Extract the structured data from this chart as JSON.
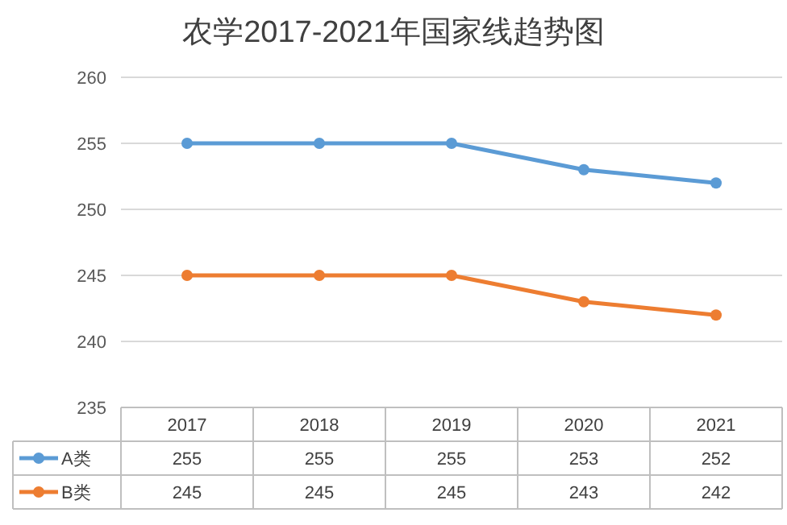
{
  "chart_data": {
    "type": "line",
    "title": "农学2017-2021年国家线趋势图",
    "categories": [
      "2017",
      "2018",
      "2019",
      "2020",
      "2021"
    ],
    "series": [
      {
        "name": "A类",
        "color": "#5b9bd5",
        "values": [
          255,
          255,
          255,
          253,
          252
        ]
      },
      {
        "name": "B类",
        "color": "#ed7d31",
        "values": [
          245,
          245,
          245,
          243,
          242
        ]
      }
    ],
    "ylim": [
      235,
      260
    ],
    "yticks": [
      235,
      240,
      245,
      250,
      255,
      260
    ],
    "grid": "y",
    "data_labels": true,
    "marker": "circle",
    "legend": "bottom"
  }
}
